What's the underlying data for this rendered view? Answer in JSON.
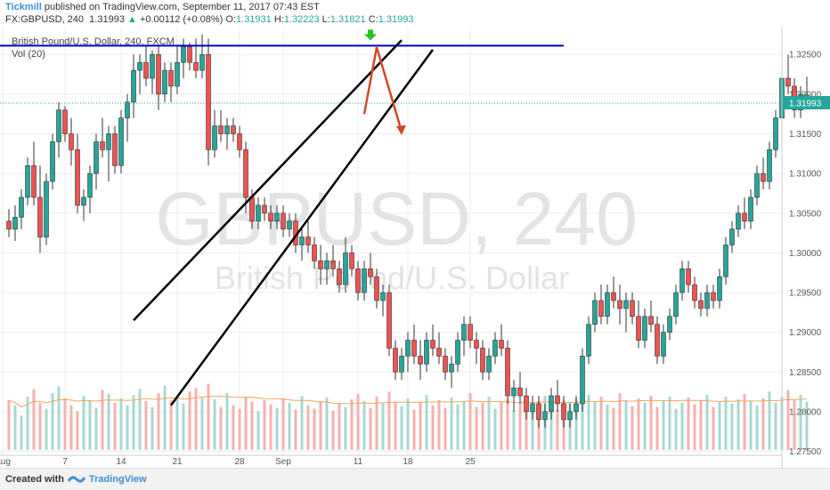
{
  "header": {
    "author": "Tickmill",
    "published_text": "published on TradingView.com, September 11, 2017 07:43 EST",
    "symbol": "FX:GBPUSD, 240",
    "last": "1.31993",
    "change_arrow": "▲",
    "change": "+0.00112 (+0.08%)",
    "o_label": "O:",
    "o": "1.31931",
    "h_label": "H:",
    "h": "1.32223",
    "l_label": "L:",
    "l": "1.31821",
    "c_label": "C:",
    "c": "1.31993"
  },
  "legend": {
    "instrument": "British Pound/U.S. Dollar, 240, FXCM",
    "volume": "Vol (20)"
  },
  "watermark": {
    "symbol": "GBPUSD, 240",
    "name": "British Pound/U.S. Dollar"
  },
  "footer": {
    "created_with": "Created with",
    "brand": "TradingView"
  },
  "colors": {
    "up": "#26a69a",
    "down": "#ef5350",
    "wick": "#333333",
    "resistance": "#0000cc",
    "channel": "#000000",
    "arrow": "#cc4a26",
    "marker": "#22c522",
    "ma": "#f7a35c"
  },
  "chart_data": {
    "type": "candlestick",
    "timeframe": "240",
    "ylim": [
      1.2745,
      1.3285
    ],
    "y_ticks": [
      "1.32500",
      "1.32000",
      "1.31500",
      "1.31000",
      "1.30500",
      "1.30000",
      "1.29500",
      "1.29000",
      "1.28500",
      "1.28000",
      "1.27500"
    ],
    "x_ticks": [
      "Aug",
      "7",
      "14",
      "21",
      "28",
      "Sep",
      "11",
      "18",
      "25"
    ],
    "last_price": "1.31993",
    "ohlc": [
      [
        1.304,
        1.3055,
        1.302,
        1.303
      ],
      [
        1.303,
        1.306,
        1.3015,
        1.3045
      ],
      [
        1.3045,
        1.308,
        1.303,
        1.307
      ],
      [
        1.307,
        1.312,
        1.306,
        1.311
      ],
      [
        1.311,
        1.314,
        1.306,
        1.307
      ],
      [
        1.307,
        1.311,
        1.3,
        1.302
      ],
      [
        1.302,
        1.31,
        1.301,
        1.309
      ],
      [
        1.309,
        1.315,
        1.308,
        1.314
      ],
      [
        1.314,
        1.319,
        1.312,
        1.318
      ],
      [
        1.318,
        1.3185,
        1.314,
        1.315
      ],
      [
        1.315,
        1.317,
        1.311,
        1.313
      ],
      [
        1.313,
        1.315,
        1.305,
        1.306
      ],
      [
        1.306,
        1.308,
        1.304,
        1.307
      ],
      [
        1.307,
        1.311,
        1.305,
        1.31
      ],
      [
        1.31,
        1.315,
        1.308,
        1.314
      ],
      [
        1.314,
        1.317,
        1.312,
        1.313
      ],
      [
        1.313,
        1.316,
        1.309,
        1.315
      ],
      [
        1.315,
        1.316,
        1.31,
        1.311
      ],
      [
        1.311,
        1.318,
        1.31,
        1.317
      ],
      [
        1.317,
        1.32,
        1.314,
        1.319
      ],
      [
        1.319,
        1.325,
        1.317,
        1.323
      ],
      [
        1.323,
        1.325,
        1.32,
        1.324
      ],
      [
        1.324,
        1.326,
        1.321,
        1.322
      ],
      [
        1.322,
        1.3255,
        1.32,
        1.325
      ],
      [
        1.325,
        1.326,
        1.318,
        1.32
      ],
      [
        1.32,
        1.324,
        1.319,
        1.323
      ],
      [
        1.323,
        1.324,
        1.319,
        1.321
      ],
      [
        1.321,
        1.326,
        1.32,
        1.324
      ],
      [
        1.324,
        1.327,
        1.322,
        1.326
      ],
      [
        1.326,
        1.3265,
        1.323,
        1.324
      ],
      [
        1.324,
        1.327,
        1.322,
        1.323
      ],
      [
        1.323,
        1.3275,
        1.322,
        1.325
      ],
      [
        1.325,
        1.327,
        1.311,
        1.313
      ],
      [
        1.313,
        1.318,
        1.312,
        1.316
      ],
      [
        1.316,
        1.318,
        1.314,
        1.315
      ],
      [
        1.315,
        1.317,
        1.313,
        1.316
      ],
      [
        1.316,
        1.317,
        1.314,
        1.315
      ],
      [
        1.315,
        1.316,
        1.312,
        1.313
      ],
      [
        1.313,
        1.314,
        1.305,
        1.307
      ],
      [
        1.307,
        1.308,
        1.303,
        1.304
      ],
      [
        1.304,
        1.307,
        1.303,
        1.306
      ],
      [
        1.306,
        1.307,
        1.304,
        1.305
      ],
      [
        1.305,
        1.306,
        1.303,
        1.304
      ],
      [
        1.304,
        1.306,
        1.303,
        1.305
      ],
      [
        1.305,
        1.306,
        1.302,
        1.303
      ],
      [
        1.303,
        1.305,
        1.302,
        1.304
      ],
      [
        1.304,
        1.305,
        1.3,
        1.301
      ],
      [
        1.301,
        1.303,
        1.299,
        1.302
      ],
      [
        1.302,
        1.304,
        1.3,
        1.301
      ],
      [
        1.301,
        1.302,
        1.298,
        1.299
      ],
      [
        1.299,
        1.301,
        1.296,
        1.298
      ],
      [
        1.298,
        1.3,
        1.296,
        1.299
      ],
      [
        1.299,
        1.301,
        1.297,
        1.298
      ],
      [
        1.298,
        1.299,
        1.295,
        1.296
      ],
      [
        1.296,
        1.302,
        1.295,
        1.3
      ],
      [
        1.3,
        1.301,
        1.297,
        1.298
      ],
      [
        1.298,
        1.299,
        1.294,
        1.295
      ],
      [
        1.295,
        1.299,
        1.294,
        1.298
      ],
      [
        1.298,
        1.3,
        1.296,
        1.297
      ],
      [
        1.297,
        1.298,
        1.293,
        1.294
      ],
      [
        1.294,
        1.296,
        1.292,
        1.295
      ],
      [
        1.295,
        1.296,
        1.287,
        1.288
      ],
      [
        1.288,
        1.289,
        1.284,
        1.285
      ],
      [
        1.285,
        1.288,
        1.284,
        1.287
      ],
      [
        1.287,
        1.29,
        1.285,
        1.289
      ],
      [
        1.289,
        1.291,
        1.286,
        1.287
      ],
      [
        1.287,
        1.289,
        1.284,
        1.286
      ],
      [
        1.286,
        1.29,
        1.285,
        1.289
      ],
      [
        1.289,
        1.291,
        1.287,
        1.288
      ],
      [
        1.288,
        1.29,
        1.286,
        1.287
      ],
      [
        1.287,
        1.288,
        1.284,
        1.285
      ],
      [
        1.285,
        1.287,
        1.283,
        1.286
      ],
      [
        1.286,
        1.29,
        1.285,
        1.289
      ],
      [
        1.289,
        1.292,
        1.287,
        1.291
      ],
      [
        1.291,
        1.292,
        1.288,
        1.289
      ],
      [
        1.289,
        1.29,
        1.286,
        1.288
      ],
      [
        1.288,
        1.289,
        1.284,
        1.285
      ],
      [
        1.285,
        1.288,
        1.284,
        1.287
      ],
      [
        1.287,
        1.29,
        1.286,
        1.289
      ],
      [
        1.289,
        1.291,
        1.287,
        1.288
      ],
      [
        1.288,
        1.289,
        1.281,
        1.282
      ],
      [
        1.282,
        1.284,
        1.28,
        1.283
      ],
      [
        1.283,
        1.285,
        1.281,
        1.282
      ],
      [
        1.282,
        1.283,
        1.279,
        1.28
      ],
      [
        1.28,
        1.282,
        1.279,
        1.281
      ],
      [
        1.281,
        1.282,
        1.278,
        1.279
      ],
      [
        1.279,
        1.281,
        1.278,
        1.28
      ],
      [
        1.28,
        1.283,
        1.279,
        1.282
      ],
      [
        1.282,
        1.284,
        1.28,
        1.281
      ],
      [
        1.281,
        1.282,
        1.278,
        1.279
      ],
      [
        1.279,
        1.281,
        1.278,
        1.28
      ],
      [
        1.28,
        1.282,
        1.279,
        1.281
      ],
      [
        1.281,
        1.288,
        1.28,
        1.287
      ],
      [
        1.287,
        1.292,
        1.286,
        1.291
      ],
      [
        1.291,
        1.295,
        1.29,
        1.294
      ],
      [
        1.294,
        1.296,
        1.291,
        1.292
      ],
      [
        1.292,
        1.296,
        1.291,
        1.295
      ],
      [
        1.295,
        1.297,
        1.293,
        1.294
      ],
      [
        1.294,
        1.296,
        1.291,
        1.293
      ],
      [
        1.293,
        1.295,
        1.29,
        1.294
      ],
      [
        1.294,
        1.295,
        1.291,
        1.292
      ],
      [
        1.292,
        1.294,
        1.288,
        1.289
      ],
      [
        1.289,
        1.293,
        1.288,
        1.292
      ],
      [
        1.292,
        1.294,
        1.29,
        1.291
      ],
      [
        1.291,
        1.292,
        1.286,
        1.287
      ],
      [
        1.287,
        1.291,
        1.286,
        1.29
      ],
      [
        1.29,
        1.293,
        1.289,
        1.292
      ],
      [
        1.292,
        1.296,
        1.291,
        1.295
      ],
      [
        1.295,
        1.299,
        1.294,
        1.298
      ],
      [
        1.298,
        1.299,
        1.295,
        1.296
      ],
      [
        1.296,
        1.297,
        1.293,
        1.294
      ],
      [
        1.294,
        1.295,
        1.292,
        1.293
      ],
      [
        1.293,
        1.296,
        1.292,
        1.295
      ],
      [
        1.295,
        1.296,
        1.293,
        1.294
      ],
      [
        1.294,
        1.298,
        1.293,
        1.297
      ],
      [
        1.297,
        1.302,
        1.296,
        1.301
      ],
      [
        1.301,
        1.304,
        1.3,
        1.303
      ],
      [
        1.303,
        1.306,
        1.302,
        1.305
      ],
      [
        1.305,
        1.307,
        1.303,
        1.304
      ],
      [
        1.304,
        1.308,
        1.303,
        1.307
      ],
      [
        1.307,
        1.311,
        1.306,
        1.31
      ],
      [
        1.31,
        1.312,
        1.308,
        1.309
      ],
      [
        1.309,
        1.314,
        1.308,
        1.313
      ],
      [
        1.313,
        1.318,
        1.312,
        1.317
      ],
      [
        1.317,
        1.323,
        1.316,
        1.322
      ],
      [
        1.322,
        1.325,
        1.32,
        1.321
      ],
      [
        1.321,
        1.322,
        1.317,
        1.318
      ],
      [
        1.318,
        1.321,
        1.317,
        1.32
      ],
      [
        1.3193,
        1.3222,
        1.3182,
        1.3199
      ]
    ],
    "volume": [
      58,
      52,
      40,
      62,
      71,
      55,
      48,
      66,
      74,
      60,
      52,
      45,
      63,
      58,
      49,
      70,
      65,
      55,
      60,
      52,
      64,
      71,
      57,
      50,
      66,
      75,
      58,
      62,
      54,
      68,
      72,
      61,
      77,
      59,
      50,
      66,
      52,
      48,
      62,
      56,
      45,
      58,
      53,
      49,
      60,
      55,
      47,
      63,
      52,
      48,
      57,
      61,
      46,
      54,
      50,
      59,
      65,
      57,
      49,
      62,
      54,
      68,
      56,
      51,
      60,
      47,
      55,
      64,
      52,
      58,
      49,
      61,
      53,
      57,
      66,
      50,
      55,
      62,
      48,
      56,
      59,
      46,
      54,
      61,
      50,
      57,
      63,
      52,
      47,
      58,
      55,
      60,
      70,
      64,
      57,
      62,
      53,
      49,
      66,
      58,
      51,
      60,
      55,
      63,
      50,
      57,
      62,
      48,
      55,
      61,
      53,
      58,
      64,
      50,
      56,
      62,
      54,
      59,
      65,
      57,
      52,
      60,
      68,
      55,
      62,
      70,
      58,
      64,
      56
    ],
    "volume_ylim": [
      0,
      120
    ],
    "channel_slope_per_bar": 0.00055,
    "channel_upper": [
      [
        20,
        1.2915
      ],
      [
        63,
        1.3268
      ]
    ],
    "channel_lower": [
      [
        26,
        1.2808
      ],
      [
        68,
        1.3256
      ]
    ],
    "resistance": {
      "price": 1.3261,
      "from_bar": -2,
      "to_bar": 89
    },
    "forecast_path": [
      [
        57,
        1.3175
      ],
      [
        59,
        1.3259
      ],
      [
        63,
        1.3153
      ]
    ],
    "marker_bar": 58,
    "x_tick_bars": [
      -1,
      9,
      18,
      27,
      37,
      44,
      56,
      64,
      74
    ]
  }
}
